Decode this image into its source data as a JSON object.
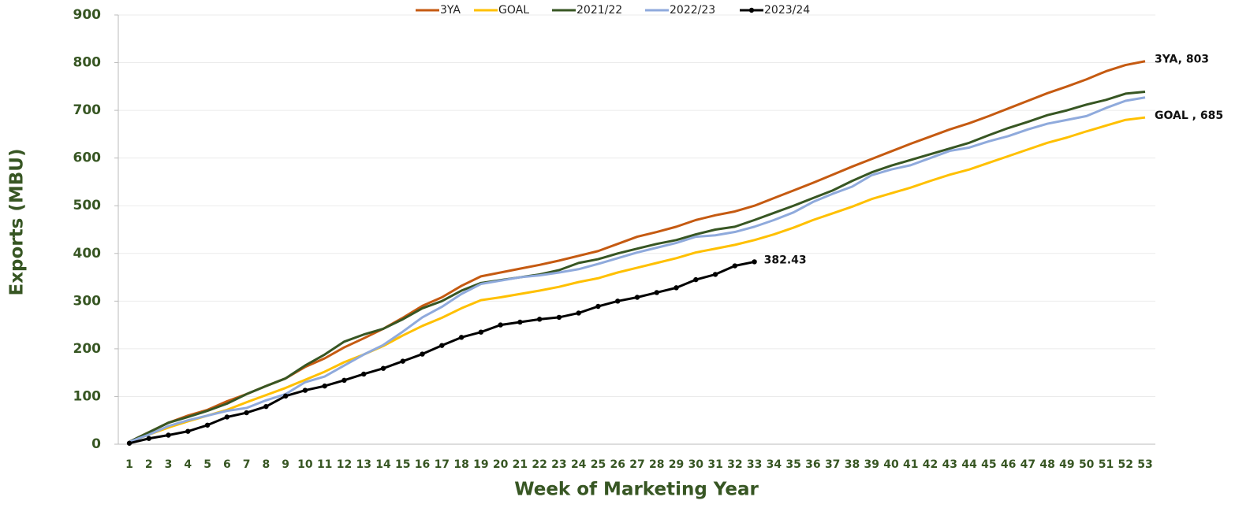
{
  "chart_data": {
    "type": "line",
    "x_label": "Week of Marketing Year",
    "y_label": "Exports (MBU)",
    "categories": [
      "1",
      "2",
      "3",
      "4",
      "5",
      "6",
      "7",
      "8",
      "9",
      "10",
      "11",
      "12",
      "13",
      "14",
      "15",
      "16",
      "17",
      "18",
      "19",
      "20",
      "21",
      "22",
      "23",
      "24",
      "25",
      "26",
      "27",
      "28",
      "29",
      "30",
      "31",
      "32",
      "33",
      "34",
      "35",
      "36",
      "37",
      "38",
      "39",
      "40",
      "41",
      "42",
      "43",
      "44",
      "45",
      "46",
      "47",
      "48",
      "49",
      "50",
      "51",
      "52",
      "53"
    ],
    "ylim": [
      0,
      900
    ],
    "yticks": [
      0,
      100,
      200,
      300,
      400,
      500,
      600,
      700,
      800,
      900
    ],
    "grid": true,
    "legend": "top",
    "series": [
      {
        "name": "3YA",
        "color": "#c55a11",
        "end_label": "3YA, 803",
        "values": [
          5,
          25,
          45,
          60,
          72,
          90,
          105,
          122,
          138,
          162,
          180,
          203,
          222,
          242,
          265,
          290,
          308,
          332,
          352,
          360,
          368,
          376,
          385,
          395,
          405,
          420,
          435,
          445,
          456,
          470,
          480,
          488,
          500,
          516,
          532,
          548,
          565,
          582,
          598,
          614,
          630,
          645,
          660,
          673,
          688,
          704,
          720,
          736,
          750,
          765,
          782,
          795,
          803
        ]
      },
      {
        "name": "GOAL",
        "color": "#ffc000",
        "end_label": "GOAL , 685",
        "values": [
          5,
          20,
          35,
          48,
          60,
          72,
          88,
          103,
          118,
          135,
          152,
          172,
          188,
          206,
          228,
          248,
          265,
          285,
          302,
          308,
          315,
          322,
          330,
          340,
          348,
          360,
          370,
          380,
          390,
          402,
          410,
          418,
          428,
          440,
          454,
          470,
          484,
          498,
          514,
          526,
          538,
          552,
          565,
          576,
          590,
          604,
          618,
          632,
          643,
          656,
          668,
          680,
          685
        ]
      },
      {
        "name": "2021/22",
        "color": "#375623",
        "values": [
          5,
          25,
          45,
          57,
          70,
          85,
          105,
          122,
          138,
          165,
          188,
          215,
          230,
          242,
          262,
          285,
          300,
          322,
          338,
          344,
          350,
          356,
          365,
          380,
          388,
          400,
          410,
          420,
          428,
          440,
          450,
          456,
          470,
          485,
          500,
          516,
          532,
          552,
          570,
          584,
          596,
          608,
          620,
          632,
          648,
          663,
          676,
          690,
          700,
          712,
          722,
          735,
          739
        ]
      },
      {
        "name": "2022/23",
        "color": "#8faadc",
        "values": [
          5,
          20,
          38,
          50,
          60,
          70,
          76,
          92,
          105,
          130,
          142,
          165,
          188,
          208,
          236,
          266,
          288,
          315,
          336,
          343,
          350,
          354,
          360,
          367,
          378,
          390,
          402,
          412,
          422,
          435,
          438,
          445,
          456,
          470,
          486,
          508,
          525,
          540,
          564,
          576,
          585,
          600,
          615,
          622,
          635,
          646,
          660,
          672,
          680,
          688,
          705,
          720,
          727
        ]
      },
      {
        "name": "2023/24",
        "color": "#000000",
        "markers": true,
        "end_label": "382.43",
        "values": [
          2,
          12,
          19,
          27,
          40,
          57,
          66,
          79,
          101,
          113,
          122,
          134,
          147,
          159,
          174,
          189,
          207,
          224,
          235,
          250,
          256,
          262,
          266,
          275,
          289,
          300,
          308,
          318,
          328,
          345,
          356,
          374,
          382.43,
          null,
          null,
          null,
          null,
          null,
          null,
          null,
          null,
          null,
          null,
          null,
          null,
          null,
          null,
          null,
          null,
          null,
          null,
          null,
          null
        ]
      }
    ]
  }
}
